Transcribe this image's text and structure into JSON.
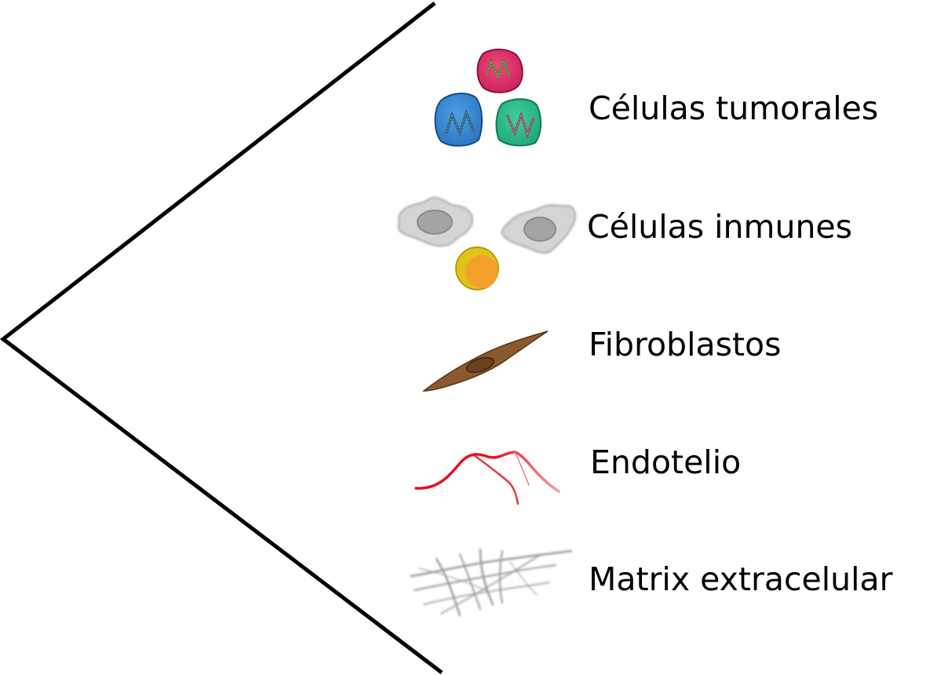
{
  "items": [
    {
      "label": "Células tumorales",
      "icon": "tumor-cells-icon"
    },
    {
      "label": "Células inmunes",
      "icon": "immune-cells-icon"
    },
    {
      "label": "Fibroblastos",
      "icon": "fibroblast-icon"
    },
    {
      "label": "Endotelio",
      "icon": "endothelium-icon"
    },
    {
      "label": "Matrix extracelular",
      "icon": "extracellular-matrix-icon"
    }
  ],
  "colors": {
    "bracket": "#000000",
    "tumor_pink": "#e8306e",
    "tumor_blue": "#3c8fd8",
    "tumor_green": "#2ec08c",
    "immune_gray": "#d0d0d0",
    "immune_orange": "#f4a12a",
    "immune_yellow": "#e0c21a",
    "fibroblast_brown": "#8a5a2e",
    "endothelium_red": "#e4141e",
    "matrix_gray": "#9a9a9a"
  }
}
